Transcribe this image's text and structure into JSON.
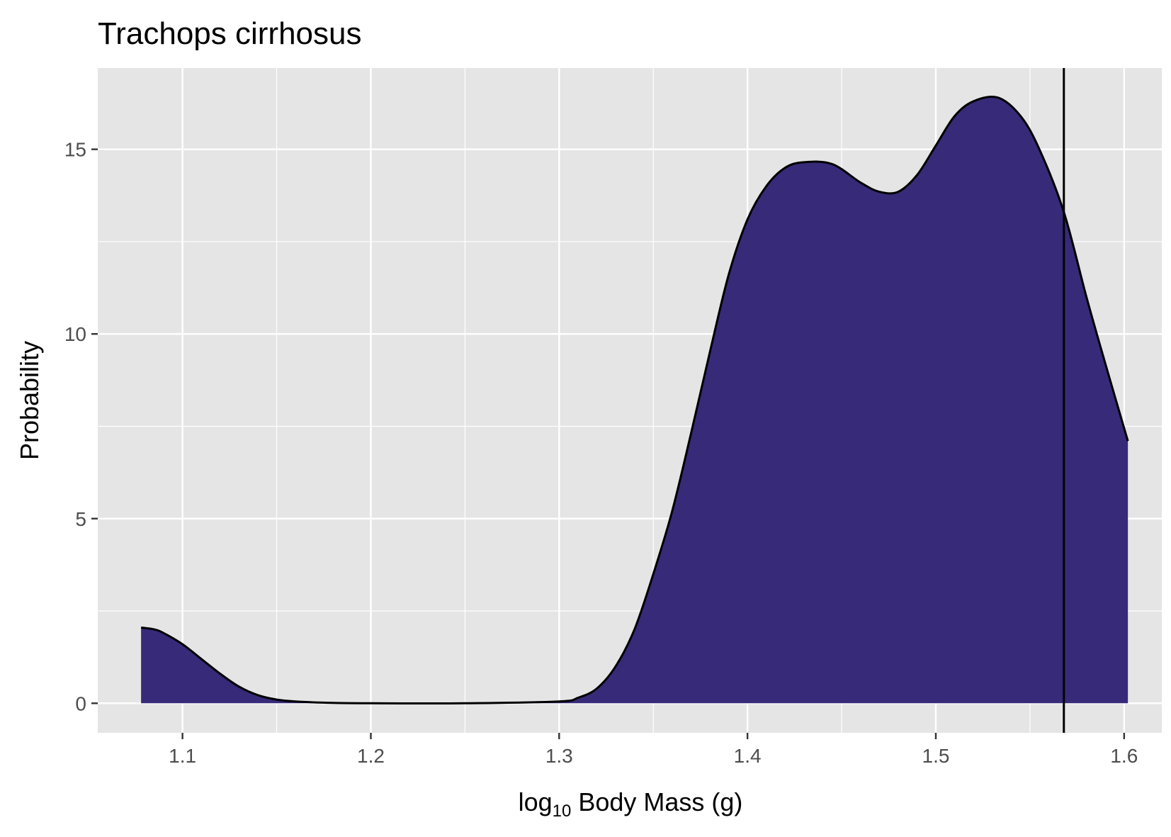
{
  "chart_data": {
    "type": "area",
    "title": "Trachops cirrhosus",
    "xlabel": "log10 Body Mass (g)",
    "xlabel_parts": {
      "pre": "log",
      "sub": "10",
      "post": " Body Mass (g)"
    },
    "ylabel": "Probability",
    "xlim": [
      1.055,
      1.62
    ],
    "ylim": [
      -0.8,
      17.2
    ],
    "x_ticks": [
      1.1,
      1.2,
      1.3,
      1.4,
      1.5,
      1.6
    ],
    "x_tick_labels": [
      "1.1",
      "1.2",
      "1.3",
      "1.4",
      "1.5",
      "1.6"
    ],
    "y_ticks": [
      0,
      5,
      10,
      15
    ],
    "y_tick_labels": [
      "0",
      "5",
      "10",
      "15"
    ],
    "grid": true,
    "legend": "none",
    "fill_color": "#372A78",
    "line_color": "#000000",
    "panel_color": "#E5E5E5",
    "vline_x": 1.568,
    "series": [
      {
        "x": [
          1.078,
          1.085,
          1.09,
          1.1,
          1.11,
          1.12,
          1.13,
          1.14,
          1.15,
          1.16,
          1.18,
          1.2,
          1.25,
          1.3,
          1.31,
          1.32,
          1.33,
          1.34,
          1.35,
          1.36,
          1.37,
          1.38,
          1.39,
          1.4,
          1.41,
          1.42,
          1.43,
          1.445,
          1.46,
          1.47,
          1.48,
          1.49,
          1.5,
          1.51,
          1.52,
          1.533,
          1.545,
          1.555,
          1.568,
          1.58,
          1.59,
          1.602
        ],
        "y": [
          2.05,
          2.0,
          1.9,
          1.6,
          1.2,
          0.8,
          0.45,
          0.22,
          0.1,
          0.05,
          0.01,
          0.0,
          0.0,
          0.05,
          0.15,
          0.4,
          1.0,
          2.0,
          3.5,
          5.2,
          7.3,
          9.5,
          11.6,
          13.1,
          14.0,
          14.5,
          14.65,
          14.6,
          14.1,
          13.85,
          13.85,
          14.3,
          15.1,
          15.9,
          16.3,
          16.4,
          15.9,
          15.0,
          13.3,
          11.0,
          9.2,
          7.1
        ]
      }
    ]
  }
}
